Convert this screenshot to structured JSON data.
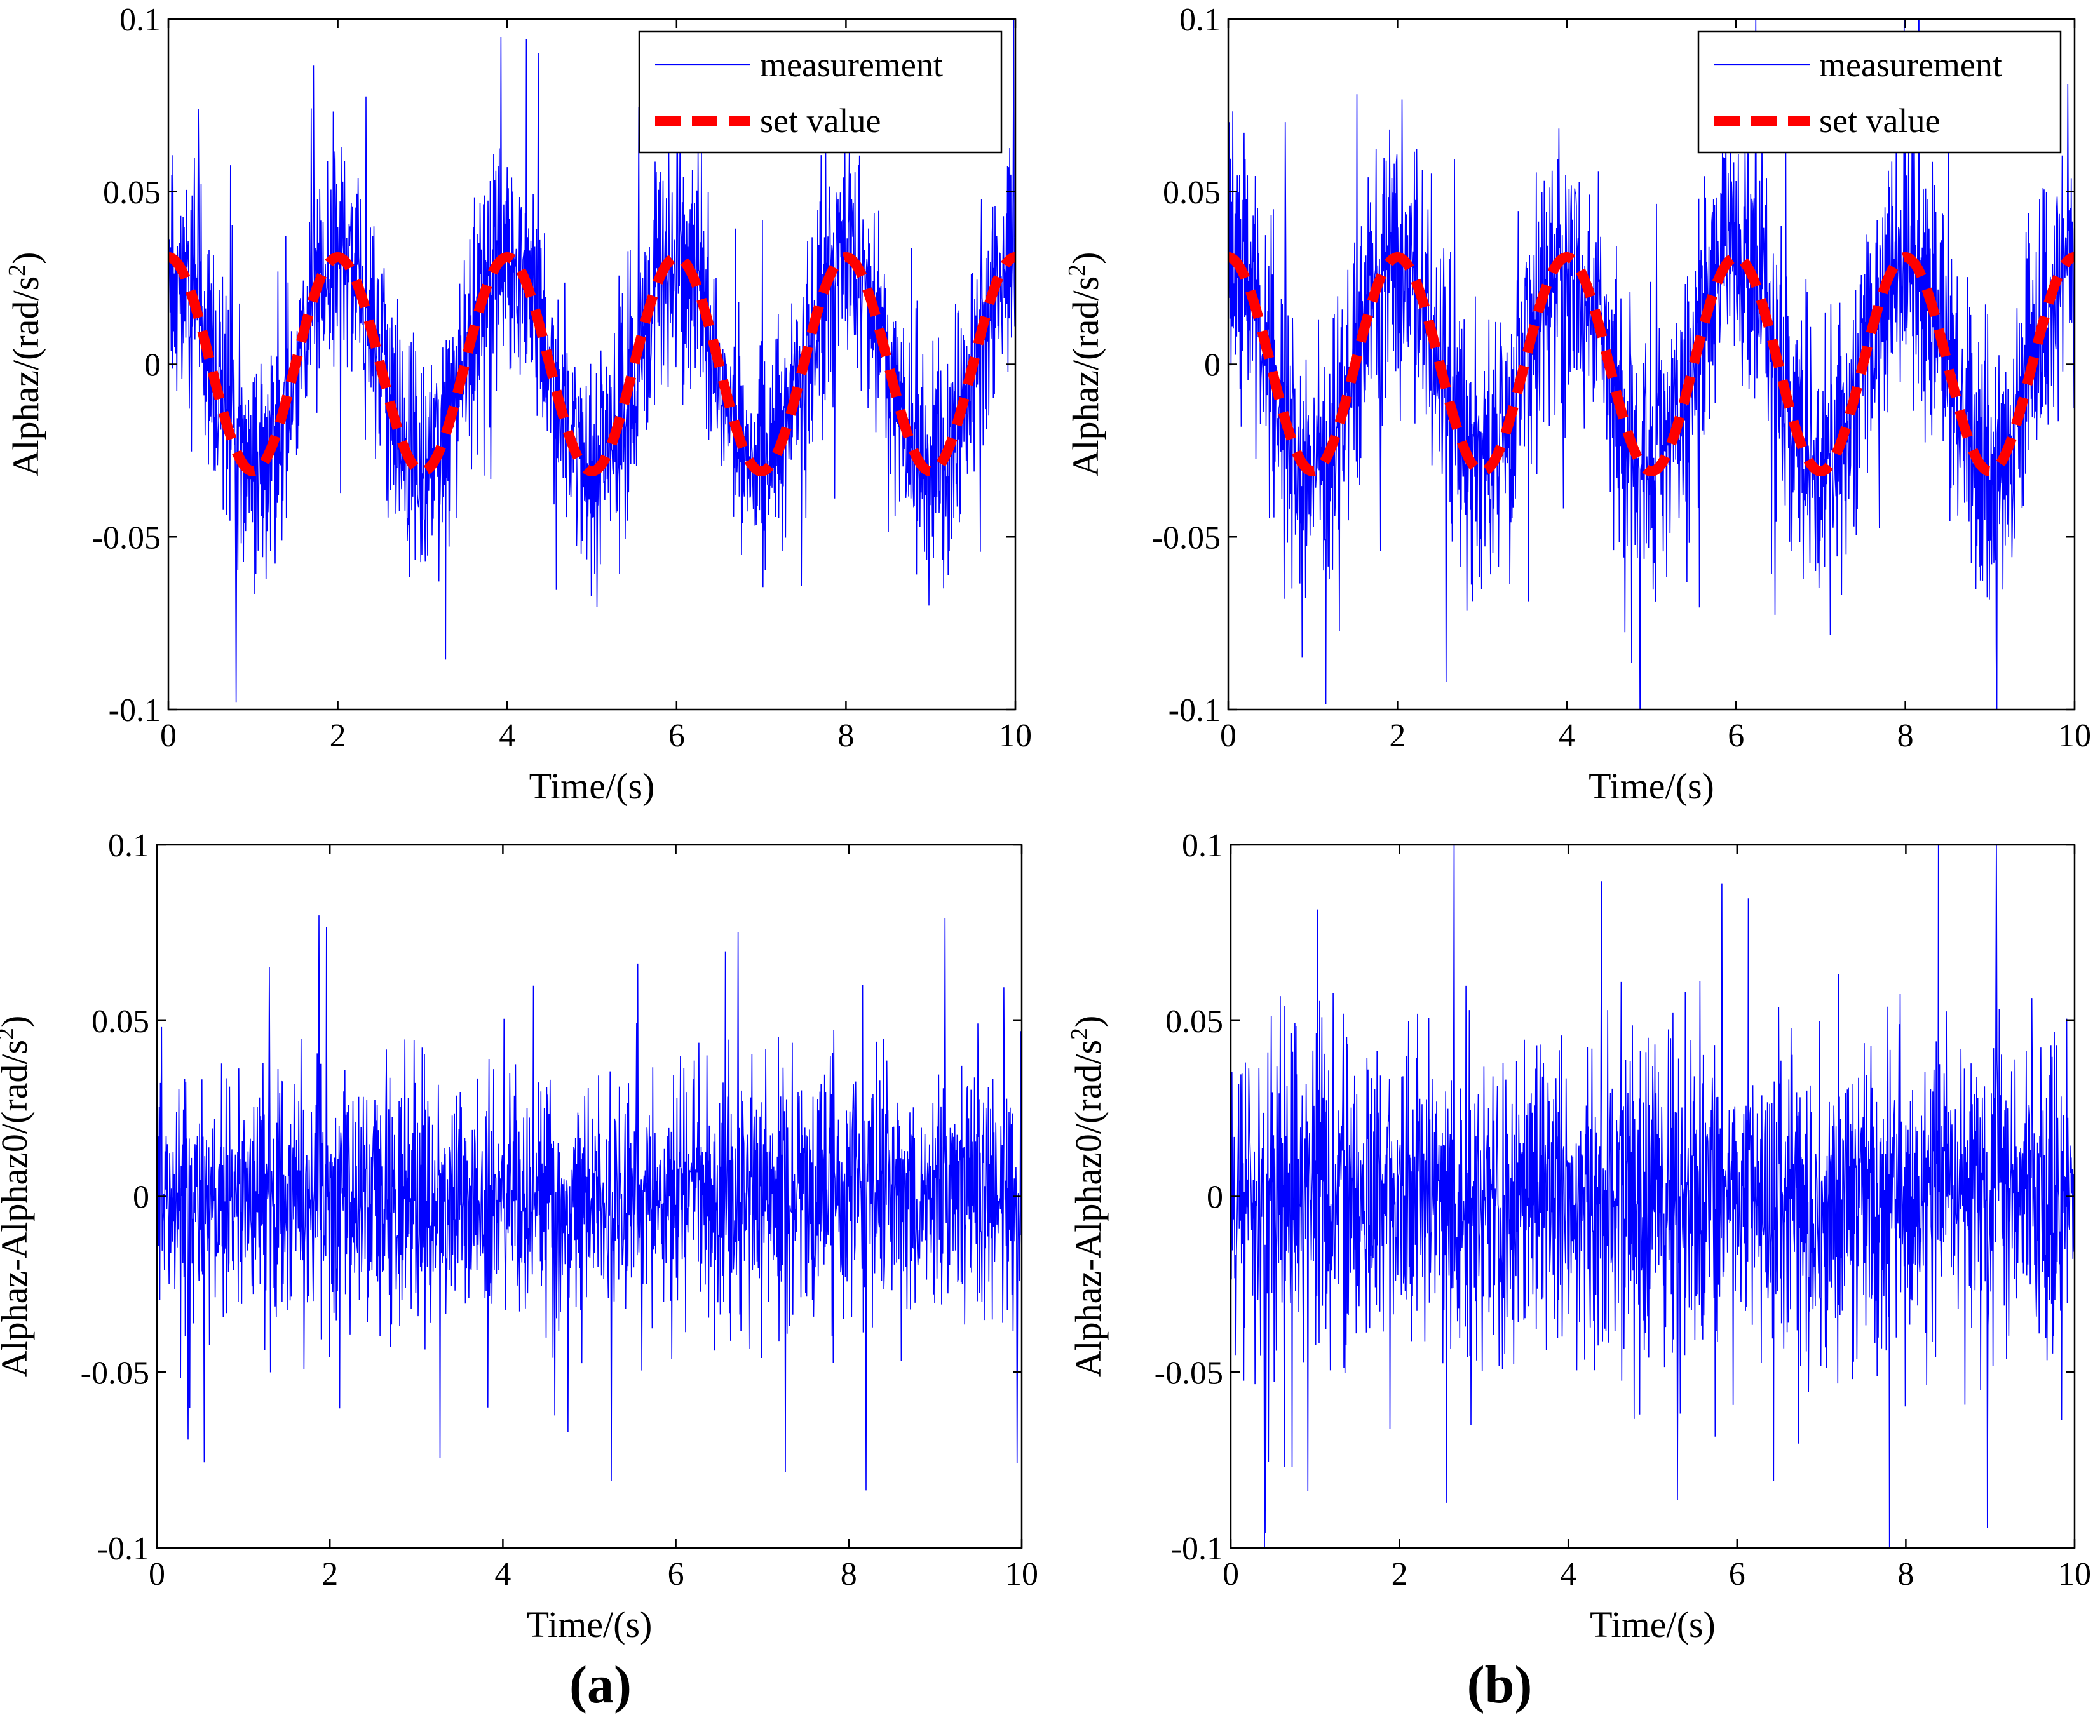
{
  "chart_data": [
    {
      "id": "a-top",
      "type": "line",
      "xlabel": "Time/(s)",
      "ylabel": "Alphaz/(rad/s2)",
      "xlim": [
        0,
        10
      ],
      "ylim": [
        -0.1,
        0.1
      ],
      "xticks": [
        "0",
        "2",
        "4",
        "6",
        "8",
        "10"
      ],
      "yticks": [
        "-0.1",
        "-0.05",
        "0",
        "0.05",
        "0.1"
      ],
      "legend": {
        "position": "top-right"
      },
      "series": [
        {
          "name": "measurement",
          "color": "#0000ff",
          "style": "thin-solid",
          "form": "noisy sine",
          "amplitude": 0.03,
          "period_s": 2,
          "noise_peak": 0.065,
          "samples": 1500,
          "seed": 11
        },
        {
          "name": "set value",
          "color": "#ff0000",
          "style": "thick-dashed",
          "form": "cosine",
          "amplitude": 0.031,
          "period_s": 2,
          "offset": 0.0
        }
      ]
    },
    {
      "id": "b-top",
      "type": "line",
      "xlabel": "Time/(s)",
      "ylabel": "Alphaz/(rad/s2)",
      "xlim": [
        0,
        10
      ],
      "ylim": [
        -0.1,
        0.1
      ],
      "xticks": [
        "0",
        "2",
        "4",
        "6",
        "8",
        "10"
      ],
      "yticks": [
        "-0.1",
        "-0.05",
        "0",
        "0.05",
        "0.1"
      ],
      "legend": {
        "position": "top-right"
      },
      "series": [
        {
          "name": "measurement",
          "color": "#0000ff",
          "style": "thin-solid",
          "form": "noisy sine",
          "amplitude": 0.03,
          "period_s": 2,
          "noise_peak": 0.075,
          "samples": 1500,
          "seed": 29
        },
        {
          "name": "set value",
          "color": "#ff0000",
          "style": "thick-dashed",
          "form": "cosine",
          "amplitude": 0.031,
          "period_s": 2,
          "offset": 0.0
        }
      ]
    },
    {
      "id": "a-bottom",
      "type": "line",
      "xlabel": "Time/(s)",
      "ylabel": "Alphaz-Alphaz0/(rad/s2)",
      "xlim": [
        0,
        10
      ],
      "ylim": [
        -0.1,
        0.1
      ],
      "xticks": [
        "0",
        "2",
        "4",
        "6",
        "8",
        "10"
      ],
      "yticks": [
        "-0.1",
        "-0.05",
        "0",
        "0.05",
        "0.1"
      ],
      "series": [
        {
          "color": "#0000ff",
          "style": "thin-solid",
          "form": "noise",
          "noise_peak": 0.07,
          "samples": 1500,
          "seed": 47
        }
      ]
    },
    {
      "id": "b-bottom",
      "type": "line",
      "xlabel": "Time/(s)",
      "ylabel": "Alphaz-Alphaz0/(rad/s2)",
      "xlim": [
        0,
        10
      ],
      "ylim": [
        -0.1,
        0.1
      ],
      "xticks": [
        "0",
        "2",
        "4",
        "6",
        "8",
        "10"
      ],
      "yticks": [
        "-0.1",
        "-0.05",
        "0",
        "0.05",
        "0.1"
      ],
      "series": [
        {
          "color": "#0000ff",
          "style": "thin-solid",
          "form": "noise",
          "noise_peak": 0.09,
          "samples": 1500,
          "seed": 83
        }
      ]
    }
  ],
  "panel_labels": {
    "a": "(a)",
    "b": "(b)"
  }
}
